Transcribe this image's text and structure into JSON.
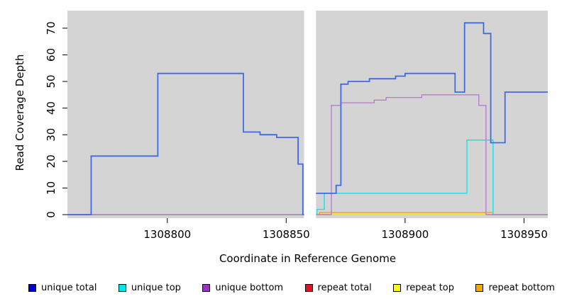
{
  "axes": {
    "x_label": "Coordinate in Reference Genome",
    "y_label": "Read Coverage Depth"
  },
  "chart_data": {
    "type": "line",
    "style": "step",
    "title": "",
    "xlabel": "Coordinate in Reference Genome",
    "ylabel": "Read Coverage Depth",
    "xlim": [
      1308758,
      1308960
    ],
    "ylim": [
      0,
      75
    ],
    "x_ticks": [
      1308800,
      1308850,
      1308900,
      1308950
    ],
    "y_ticks": [
      0,
      10,
      20,
      30,
      40,
      50,
      60,
      70
    ],
    "grid": false,
    "plot_bg": "#d4d4d4",
    "gap_band": {
      "x_start": 1308857.5,
      "x_end": 1308862.5,
      "color": "#ffffff"
    },
    "series": [
      {
        "name": "repeat total",
        "color": "#cd2626",
        "width": 1.3,
        "points": [
          [
            1308758,
            0
          ],
          [
            1308960,
            0
          ]
        ]
      },
      {
        "name": "repeat top",
        "color": "#ffff00",
        "width": 1.3,
        "points": [
          [
            1308758,
            0
          ],
          [
            1308960,
            0
          ]
        ]
      },
      {
        "name": "repeat bottom",
        "color": "#ff9912",
        "width": 1.3,
        "points": [
          [
            1308758,
            0
          ],
          [
            1308864,
            0.8
          ],
          [
            1308937,
            0
          ],
          [
            1308960,
            0
          ]
        ]
      },
      {
        "name": "unique top",
        "color": "#00e5ee",
        "width": 1.3,
        "points": [
          [
            1308758,
            0
          ],
          [
            1308863,
            2
          ],
          [
            1308866,
            8
          ],
          [
            1308926,
            28
          ],
          [
            1308937,
            0
          ],
          [
            1308960,
            0
          ]
        ]
      },
      {
        "name": "unique bottom",
        "color": "#b678d8",
        "width": 1.3,
        "points": [
          [
            1308758,
            0
          ],
          [
            1308869,
            41
          ],
          [
            1308873,
            42
          ],
          [
            1308887,
            43
          ],
          [
            1308892,
            44
          ],
          [
            1308907,
            45
          ],
          [
            1308931,
            41
          ],
          [
            1308934,
            0
          ],
          [
            1308960,
            0
          ]
        ]
      },
      {
        "name": "unique total",
        "color": "#4169e1",
        "width": 1.8,
        "points": [
          [
            1308758,
            0
          ],
          [
            1308768,
            22
          ],
          [
            1308796,
            53
          ],
          [
            1308832,
            31
          ],
          [
            1308839,
            30
          ],
          [
            1308846,
            29
          ],
          [
            1308855,
            19
          ],
          [
            1308857,
            0
          ],
          [
            1308862,
            8
          ],
          [
            1308871,
            11
          ],
          [
            1308873,
            49
          ],
          [
            1308876,
            50
          ],
          [
            1308885,
            51
          ],
          [
            1308896,
            52
          ],
          [
            1308900,
            53
          ],
          [
            1308921,
            46
          ],
          [
            1308925,
            72
          ],
          [
            1308933,
            68
          ],
          [
            1308936,
            27
          ],
          [
            1308942,
            46
          ],
          [
            1308960,
            46
          ]
        ]
      }
    ],
    "legend": {
      "position": "bottom",
      "items": [
        {
          "label": "unique total",
          "color": "#0000cd"
        },
        {
          "label": "unique top",
          "color": "#00e5ee"
        },
        {
          "label": "unique bottom",
          "color": "#9932cc"
        },
        {
          "label": "repeat total",
          "color": "#dc1425"
        },
        {
          "label": "repeat top",
          "color": "#ffff00"
        },
        {
          "label": "repeat bottom",
          "color": "#ffa500"
        }
      ]
    }
  }
}
